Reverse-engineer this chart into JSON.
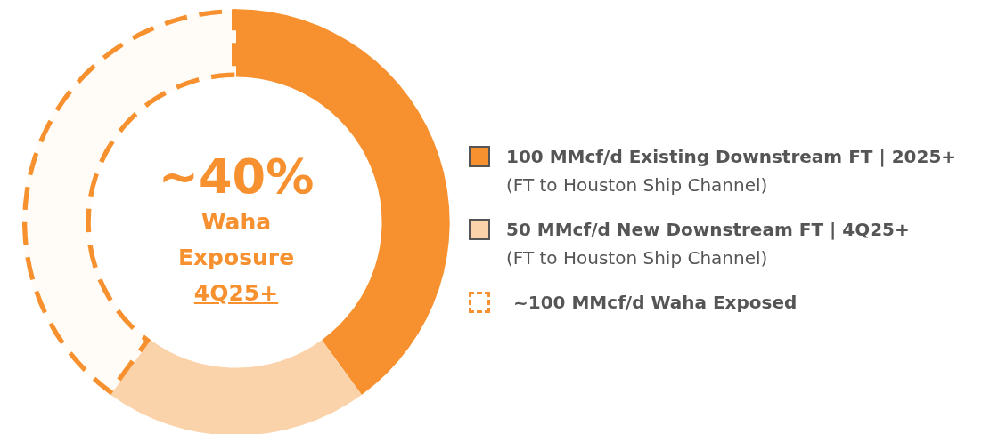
{
  "chart_data": {
    "type": "donut",
    "title": "~40%",
    "subtitle": "Waha\nExposure",
    "annotations": [
      "4Q25+"
    ],
    "categories": [
      "100 MMcf/d Existing Downstream FT | 2025+\n(FT to Houston Ship Channel)",
      "50 MMcf/d New Downstream FT | 4Q25+\n(FT to Houston Ship Channel)",
      "~100 MMcf/d Waha Exposed"
    ],
    "values": [
      100,
      50,
      100
    ],
    "colors": [
      "#f7902e",
      "#fbd3aa",
      "#f7902e"
    ],
    "line_style": "dashed",
    "legend": "right"
  }
}
